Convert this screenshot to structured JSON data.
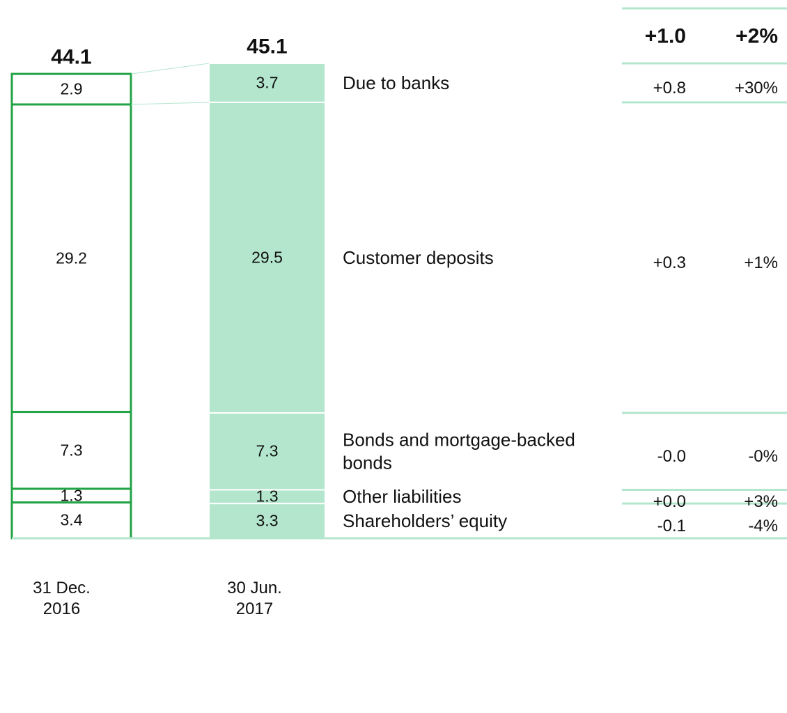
{
  "chart_data": {
    "type": "stacked_bar",
    "categories": [
      "31 Dec. 2016",
      "30 Jun. 2017"
    ],
    "totals": [
      44.1,
      45.1
    ],
    "series": [
      {
        "name": "Shareholders’ equity",
        "values": [
          3.4,
          3.3
        ]
      },
      {
        "name": "Other liabilities",
        "values": [
          1.3,
          1.3
        ]
      },
      {
        "name": "Bonds and mortgage-backed bonds",
        "values": [
          7.3,
          7.3
        ]
      },
      {
        "name": "Customer deposits",
        "values": [
          29.2,
          29.5
        ]
      },
      {
        "name": "Due to banks",
        "values": [
          2.9,
          3.7
        ]
      }
    ],
    "changes": {
      "values": [
        -0.1,
        0.0,
        0.0,
        0.3,
        0.8
      ],
      "value_labels": [
        "-0.1",
        "+0.0",
        "-0.0",
        "+0.3",
        "+0.8"
      ]
    },
    "change_pct": {
      "values": [
        -4,
        3,
        0,
        1,
        30
      ],
      "value_labels": [
        "-4%",
        "+3%",
        "-0%",
        "+1%",
        "+30%"
      ]
    },
    "total_change": {
      "value": 1.0,
      "label": "+1.0"
    },
    "total_pct": {
      "value": 2,
      "label": "+2%"
    },
    "bar_styles": [
      {
        "fill": "#ffffff",
        "stroke": "#22a345"
      },
      {
        "fill": "#b3e6cc",
        "stroke": "#ffffff"
      }
    ],
    "rule_color": "#b3e6cc"
  }
}
